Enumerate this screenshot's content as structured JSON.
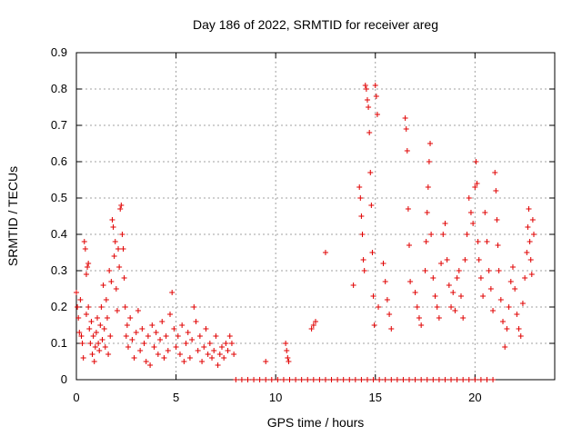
{
  "chart_data": {
    "type": "scatter",
    "title": "Day 186 of 2022, SRMTID for receiver areg",
    "xlabel": "GPS time / hours",
    "ylabel": "SRMTID / TECUs",
    "xlim": [
      0,
      24
    ],
    "ylim": [
      0,
      0.9
    ],
    "xticks": [
      0,
      5,
      10,
      15,
      20
    ],
    "xtick_labels": [
      "0",
      "5",
      "10",
      "15",
      "20"
    ],
    "yticks": [
      0,
      0.1,
      0.2,
      0.3,
      0.4,
      0.5,
      0.6,
      0.7,
      0.8,
      0.9
    ],
    "ytick_labels": [
      "0",
      "0.1",
      "0.2",
      "0.3",
      "0.4",
      "0.5",
      "0.6",
      "0.7",
      "0.8",
      "0.9"
    ],
    "grid": true,
    "marker": "+",
    "color": "#e00000",
    "series": [
      {
        "name": "SRMTID",
        "points": [
          [
            0.0,
            0.24
          ],
          [
            0.05,
            0.2
          ],
          [
            0.1,
            0.17
          ],
          [
            0.15,
            0.13
          ],
          [
            0.2,
            0.22
          ],
          [
            0.25,
            0.12
          ],
          [
            0.3,
            0.1
          ],
          [
            0.35,
            0.06
          ],
          [
            0.4,
            0.38
          ],
          [
            0.45,
            0.36
          ],
          [
            0.5,
            0.29
          ],
          [
            0.5,
            0.18
          ],
          [
            0.55,
            0.31
          ],
          [
            0.6,
            0.32
          ],
          [
            0.6,
            0.2
          ],
          [
            0.65,
            0.14
          ],
          [
            0.7,
            0.1
          ],
          [
            0.75,
            0.16
          ],
          [
            0.8,
            0.07
          ],
          [
            0.85,
            0.12
          ],
          [
            0.9,
            0.05
          ],
          [
            0.95,
            0.09
          ],
          [
            1.0,
            0.13
          ],
          [
            1.05,
            0.17
          ],
          [
            1.1,
            0.1
          ],
          [
            1.15,
            0.08
          ],
          [
            1.2,
            0.15
          ],
          [
            1.25,
            0.2
          ],
          [
            1.3,
            0.11
          ],
          [
            1.35,
            0.26
          ],
          [
            1.4,
            0.14
          ],
          [
            1.45,
            0.09
          ],
          [
            1.5,
            0.22
          ],
          [
            1.55,
            0.17
          ],
          [
            1.6,
            0.07
          ],
          [
            1.65,
            0.3
          ],
          [
            1.7,
            0.12
          ],
          [
            1.75,
            0.27
          ],
          [
            1.8,
            0.44
          ],
          [
            1.85,
            0.42
          ],
          [
            1.9,
            0.34
          ],
          [
            1.95,
            0.38
          ],
          [
            2.0,
            0.25
          ],
          [
            2.05,
            0.19
          ],
          [
            2.1,
            0.36
          ],
          [
            2.15,
            0.31
          ],
          [
            2.2,
            0.47
          ],
          [
            2.25,
            0.48
          ],
          [
            2.3,
            0.4
          ],
          [
            2.35,
            0.36
          ],
          [
            2.4,
            0.28
          ],
          [
            2.45,
            0.2
          ],
          [
            2.5,
            0.12
          ],
          [
            2.55,
            0.15
          ],
          [
            2.6,
            0.09
          ],
          [
            2.7,
            0.17
          ],
          [
            2.8,
            0.11
          ],
          [
            2.9,
            0.06
          ],
          [
            3.0,
            0.13
          ],
          [
            3.1,
            0.19
          ],
          [
            3.2,
            0.08
          ],
          [
            3.3,
            0.14
          ],
          [
            3.4,
            0.1
          ],
          [
            3.5,
            0.05
          ],
          [
            3.6,
            0.12
          ],
          [
            3.7,
            0.04
          ],
          [
            3.8,
            0.15
          ],
          [
            3.9,
            0.09
          ],
          [
            4.0,
            0.13
          ],
          [
            4.1,
            0.07
          ],
          [
            4.2,
            0.11
          ],
          [
            4.3,
            0.16
          ],
          [
            4.4,
            0.06
          ],
          [
            4.5,
            0.12
          ],
          [
            4.6,
            0.08
          ],
          [
            4.7,
            0.18
          ],
          [
            4.8,
            0.24
          ],
          [
            4.9,
            0.14
          ],
          [
            5.0,
            0.09
          ],
          [
            5.1,
            0.12
          ],
          [
            5.2,
            0.07
          ],
          [
            5.3,
            0.15
          ],
          [
            5.4,
            0.05
          ],
          [
            5.5,
            0.1
          ],
          [
            5.6,
            0.13
          ],
          [
            5.7,
            0.06
          ],
          [
            5.8,
            0.11
          ],
          [
            5.9,
            0.2
          ],
          [
            6.0,
            0.16
          ],
          [
            6.1,
            0.08
          ],
          [
            6.2,
            0.12
          ],
          [
            6.3,
            0.05
          ],
          [
            6.4,
            0.09
          ],
          [
            6.5,
            0.14
          ],
          [
            6.6,
            0.07
          ],
          [
            6.7,
            0.1
          ],
          [
            6.8,
            0.06
          ],
          [
            6.9,
            0.08
          ],
          [
            7.0,
            0.12
          ],
          [
            7.1,
            0.04
          ],
          [
            7.2,
            0.07
          ],
          [
            7.3,
            0.09
          ],
          [
            7.4,
            0.06
          ],
          [
            7.5,
            0.1
          ],
          [
            7.6,
            0.08
          ],
          [
            7.7,
            0.12
          ],
          [
            7.8,
            0.1
          ],
          [
            7.9,
            0.07
          ],
          [
            8.0,
            0.0
          ],
          [
            8.3,
            0.0
          ],
          [
            8.6,
            0.0
          ],
          [
            8.9,
            0.0
          ],
          [
            9.2,
            0.0
          ],
          [
            9.5,
            0.0
          ],
          [
            9.8,
            0.0
          ],
          [
            10.1,
            0.0
          ],
          [
            10.4,
            0.0
          ],
          [
            10.7,
            0.0
          ],
          [
            11.0,
            0.0
          ],
          [
            11.3,
            0.0
          ],
          [
            11.6,
            0.0
          ],
          [
            11.9,
            0.0
          ],
          [
            12.2,
            0.0
          ],
          [
            12.5,
            0.0
          ],
          [
            12.8,
            0.0
          ],
          [
            13.1,
            0.0
          ],
          [
            13.4,
            0.0
          ],
          [
            13.7,
            0.0
          ],
          [
            14.0,
            0.0
          ],
          [
            14.3,
            0.0
          ],
          [
            14.6,
            0.0
          ],
          [
            14.9,
            0.0
          ],
          [
            15.2,
            0.0
          ],
          [
            15.5,
            0.0
          ],
          [
            15.8,
            0.0
          ],
          [
            16.1,
            0.0
          ],
          [
            16.4,
            0.0
          ],
          [
            16.7,
            0.0
          ],
          [
            17.0,
            0.0
          ],
          [
            17.3,
            0.0
          ],
          [
            17.6,
            0.0
          ],
          [
            17.9,
            0.0
          ],
          [
            18.2,
            0.0
          ],
          [
            18.5,
            0.0
          ],
          [
            18.8,
            0.0
          ],
          [
            19.1,
            0.0
          ],
          [
            19.4,
            0.0
          ],
          [
            19.7,
            0.0
          ],
          [
            20.0,
            0.0
          ],
          [
            20.3,
            0.0
          ],
          [
            20.6,
            0.0
          ],
          [
            20.9,
            0.0
          ],
          [
            9.5,
            0.05
          ],
          [
            10.5,
            0.1
          ],
          [
            10.55,
            0.08
          ],
          [
            10.6,
            0.06
          ],
          [
            10.65,
            0.05
          ],
          [
            11.8,
            0.14
          ],
          [
            11.9,
            0.15
          ],
          [
            12.0,
            0.16
          ],
          [
            12.5,
            0.35
          ],
          [
            13.9,
            0.26
          ],
          [
            14.2,
            0.53
          ],
          [
            14.25,
            0.5
          ],
          [
            14.3,
            0.45
          ],
          [
            14.35,
            0.4
          ],
          [
            14.4,
            0.33
          ],
          [
            14.45,
            0.3
          ],
          [
            14.5,
            0.81
          ],
          [
            14.55,
            0.8
          ],
          [
            14.6,
            0.77
          ],
          [
            14.65,
            0.75
          ],
          [
            14.7,
            0.68
          ],
          [
            14.75,
            0.57
          ],
          [
            14.8,
            0.48
          ],
          [
            14.85,
            0.35
          ],
          [
            14.9,
            0.23
          ],
          [
            14.95,
            0.15
          ],
          [
            15.0,
            0.81
          ],
          [
            15.05,
            0.78
          ],
          [
            15.1,
            0.73
          ],
          [
            15.15,
            0.2
          ],
          [
            15.4,
            0.32
          ],
          [
            15.5,
            0.27
          ],
          [
            15.6,
            0.22
          ],
          [
            15.7,
            0.18
          ],
          [
            15.8,
            0.14
          ],
          [
            16.5,
            0.72
          ],
          [
            16.55,
            0.69
          ],
          [
            16.6,
            0.63
          ],
          [
            16.65,
            0.47
          ],
          [
            16.7,
            0.37
          ],
          [
            16.75,
            0.27
          ],
          [
            17.0,
            0.24
          ],
          [
            17.1,
            0.2
          ],
          [
            17.2,
            0.17
          ],
          [
            17.3,
            0.15
          ],
          [
            17.5,
            0.3
          ],
          [
            17.55,
            0.38
          ],
          [
            17.6,
            0.46
          ],
          [
            17.65,
            0.53
          ],
          [
            17.7,
            0.6
          ],
          [
            17.75,
            0.65
          ],
          [
            17.8,
            0.4
          ],
          [
            17.9,
            0.28
          ],
          [
            18.0,
            0.23
          ],
          [
            18.1,
            0.2
          ],
          [
            18.2,
            0.17
          ],
          [
            18.3,
            0.32
          ],
          [
            18.4,
            0.4
          ],
          [
            18.5,
            0.43
          ],
          [
            18.6,
            0.33
          ],
          [
            18.7,
            0.26
          ],
          [
            18.8,
            0.2
          ],
          [
            18.9,
            0.24
          ],
          [
            19.0,
            0.19
          ],
          [
            19.1,
            0.28
          ],
          [
            19.2,
            0.3
          ],
          [
            19.3,
            0.23
          ],
          [
            19.4,
            0.17
          ],
          [
            19.5,
            0.33
          ],
          [
            19.6,
            0.4
          ],
          [
            19.7,
            0.5
          ],
          [
            19.8,
            0.46
          ],
          [
            19.9,
            0.43
          ],
          [
            20.0,
            0.53
          ],
          [
            20.05,
            0.6
          ],
          [
            20.1,
            0.54
          ],
          [
            20.15,
            0.38
          ],
          [
            20.2,
            0.33
          ],
          [
            20.3,
            0.28
          ],
          [
            20.4,
            0.23
          ],
          [
            20.5,
            0.46
          ],
          [
            20.6,
            0.38
          ],
          [
            20.7,
            0.3
          ],
          [
            20.8,
            0.25
          ],
          [
            20.9,
            0.19
          ],
          [
            21.0,
            0.57
          ],
          [
            21.05,
            0.52
          ],
          [
            21.1,
            0.44
          ],
          [
            21.15,
            0.37
          ],
          [
            21.2,
            0.3
          ],
          [
            21.3,
            0.22
          ],
          [
            21.4,
            0.16
          ],
          [
            21.5,
            0.09
          ],
          [
            21.6,
            0.14
          ],
          [
            21.7,
            0.2
          ],
          [
            21.8,
            0.27
          ],
          [
            21.9,
            0.31
          ],
          [
            22.0,
            0.25
          ],
          [
            22.1,
            0.18
          ],
          [
            22.2,
            0.14
          ],
          [
            22.3,
            0.12
          ],
          [
            22.4,
            0.21
          ],
          [
            22.5,
            0.28
          ],
          [
            22.6,
            0.35
          ],
          [
            22.65,
            0.42
          ],
          [
            22.7,
            0.47
          ],
          [
            22.75,
            0.38
          ],
          [
            22.8,
            0.33
          ],
          [
            22.85,
            0.29
          ],
          [
            22.9,
            0.44
          ],
          [
            22.95,
            0.4
          ]
        ]
      }
    ]
  }
}
